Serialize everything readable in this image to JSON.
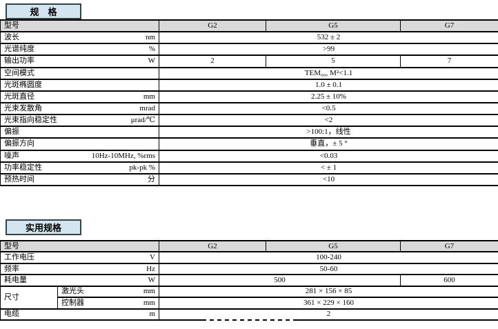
{
  "colors": {
    "title_box_bg": "#d3e5ee",
    "title_box_border": "#33414a",
    "header_row_bg": "#d9d9d9",
    "table_border": "#000000"
  },
  "table1": {
    "title": "规    格",
    "header": {
      "model_label": "型号",
      "columns": [
        "G2",
        "G5",
        "G7"
      ]
    },
    "rows": [
      {
        "label": "波长",
        "unit": "nm",
        "values": [
          {
            "span": 3,
            "text": "532 ± 2"
          }
        ]
      },
      {
        "label": "光谱纯度",
        "unit": "%",
        "values": [
          {
            "span": 3,
            "text": ">99"
          }
        ]
      },
      {
        "label": "输出功率",
        "unit": "W",
        "values": [
          {
            "span": 1,
            "text": "2"
          },
          {
            "span": 1,
            "text": "5"
          },
          {
            "span": 1,
            "text": "7"
          }
        ]
      },
      {
        "label": "空间模式",
        "unit": "",
        "values": [
          {
            "span": 3,
            "text": "TEM₀₀, M²<1.1"
          }
        ]
      },
      {
        "label": "光斑椭圆度",
        "unit": "",
        "values": [
          {
            "span": 3,
            "text": "1.0 ± 0.1"
          }
        ]
      },
      {
        "label": "光斑直径",
        "unit": "mm",
        "values": [
          {
            "span": 3,
            "text": "2.25 ± 10%"
          }
        ]
      },
      {
        "label": "光束发散角",
        "unit": "mrad",
        "values": [
          {
            "span": 3,
            "text": "<0.5"
          }
        ]
      },
      {
        "label": "光束指向稳定性",
        "unit": "μrad/℃",
        "values": [
          {
            "span": 3,
            "text": "<2"
          }
        ]
      },
      {
        "label": "偏振",
        "unit": "",
        "values": [
          {
            "span": 3,
            "text": ">100:1，线性"
          }
        ]
      },
      {
        "label": "偏振方向",
        "unit": "",
        "values": [
          {
            "span": 3,
            "text": "垂直，± 5 °"
          }
        ]
      },
      {
        "label": "噪声",
        "unit": "10Hz-10MHz, %rms",
        "values": [
          {
            "span": 3,
            "text": "<0.03"
          }
        ]
      },
      {
        "label": "功率稳定性",
        "unit": "pk-pk %",
        "values": [
          {
            "span": 3,
            "text": "< ± 1"
          }
        ]
      },
      {
        "label": "预热时间",
        "unit": "分",
        "values": [
          {
            "span": 3,
            "text": "<10"
          }
        ]
      }
    ]
  },
  "table2": {
    "title": "实用规格",
    "header": {
      "model_label": "型号",
      "columns": [
        "G2",
        "G5",
        "G7"
      ]
    },
    "rows": [
      {
        "label": "工作电压",
        "unit": "V",
        "values": [
          {
            "span": 3,
            "text": "100-240"
          }
        ]
      },
      {
        "label": "频率",
        "unit": "Hz",
        "values": [
          {
            "span": 3,
            "text": "50-60"
          }
        ]
      },
      {
        "label": "耗电量",
        "unit": "W",
        "values": [
          {
            "span": 2,
            "text": "500"
          },
          {
            "span": 1,
            "text": "600"
          }
        ]
      },
      {
        "label": "尺寸",
        "sublabel": "激光头",
        "unit": "mm",
        "values": [
          {
            "span": 3,
            "text": "281 × 156 × 85"
          }
        ]
      },
      {
        "label": "",
        "sublabel": "控制器",
        "unit": "mm",
        "values": [
          {
            "span": 3,
            "text": "361 × 229 × 160"
          }
        ]
      },
      {
        "label": "电缆",
        "unit": "m",
        "values": [
          {
            "span": 3,
            "text": "2"
          }
        ]
      }
    ]
  }
}
